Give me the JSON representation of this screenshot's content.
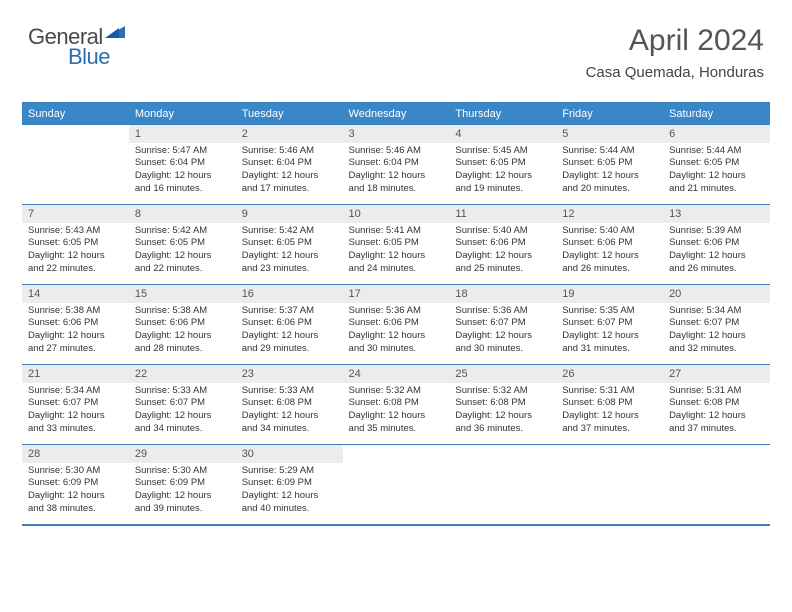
{
  "logo": {
    "general": "General",
    "blue": "Blue"
  },
  "title": "April 2024",
  "subtitle": "Casa Quemada, Honduras",
  "colors": {
    "header_bg": "#3a87c7",
    "header_border": "#3a7fbf",
    "daynum_bg": "#ececec",
    "text": "#333333"
  },
  "weekdays": [
    "Sunday",
    "Monday",
    "Tuesday",
    "Wednesday",
    "Thursday",
    "Friday",
    "Saturday"
  ],
  "weeks": [
    {
      "days": [
        {
          "num": "",
          "sunrise": "",
          "sunset": "",
          "daylight1": "",
          "daylight2": ""
        },
        {
          "num": "1",
          "sunrise": "Sunrise: 5:47 AM",
          "sunset": "Sunset: 6:04 PM",
          "daylight1": "Daylight: 12 hours",
          "daylight2": "and 16 minutes."
        },
        {
          "num": "2",
          "sunrise": "Sunrise: 5:46 AM",
          "sunset": "Sunset: 6:04 PM",
          "daylight1": "Daylight: 12 hours",
          "daylight2": "and 17 minutes."
        },
        {
          "num": "3",
          "sunrise": "Sunrise: 5:46 AM",
          "sunset": "Sunset: 6:04 PM",
          "daylight1": "Daylight: 12 hours",
          "daylight2": "and 18 minutes."
        },
        {
          "num": "4",
          "sunrise": "Sunrise: 5:45 AM",
          "sunset": "Sunset: 6:05 PM",
          "daylight1": "Daylight: 12 hours",
          "daylight2": "and 19 minutes."
        },
        {
          "num": "5",
          "sunrise": "Sunrise: 5:44 AM",
          "sunset": "Sunset: 6:05 PM",
          "daylight1": "Daylight: 12 hours",
          "daylight2": "and 20 minutes."
        },
        {
          "num": "6",
          "sunrise": "Sunrise: 5:44 AM",
          "sunset": "Sunset: 6:05 PM",
          "daylight1": "Daylight: 12 hours",
          "daylight2": "and 21 minutes."
        }
      ]
    },
    {
      "days": [
        {
          "num": "7",
          "sunrise": "Sunrise: 5:43 AM",
          "sunset": "Sunset: 6:05 PM",
          "daylight1": "Daylight: 12 hours",
          "daylight2": "and 22 minutes."
        },
        {
          "num": "8",
          "sunrise": "Sunrise: 5:42 AM",
          "sunset": "Sunset: 6:05 PM",
          "daylight1": "Daylight: 12 hours",
          "daylight2": "and 22 minutes."
        },
        {
          "num": "9",
          "sunrise": "Sunrise: 5:42 AM",
          "sunset": "Sunset: 6:05 PM",
          "daylight1": "Daylight: 12 hours",
          "daylight2": "and 23 minutes."
        },
        {
          "num": "10",
          "sunrise": "Sunrise: 5:41 AM",
          "sunset": "Sunset: 6:05 PM",
          "daylight1": "Daylight: 12 hours",
          "daylight2": "and 24 minutes."
        },
        {
          "num": "11",
          "sunrise": "Sunrise: 5:40 AM",
          "sunset": "Sunset: 6:06 PM",
          "daylight1": "Daylight: 12 hours",
          "daylight2": "and 25 minutes."
        },
        {
          "num": "12",
          "sunrise": "Sunrise: 5:40 AM",
          "sunset": "Sunset: 6:06 PM",
          "daylight1": "Daylight: 12 hours",
          "daylight2": "and 26 minutes."
        },
        {
          "num": "13",
          "sunrise": "Sunrise: 5:39 AM",
          "sunset": "Sunset: 6:06 PM",
          "daylight1": "Daylight: 12 hours",
          "daylight2": "and 26 minutes."
        }
      ]
    },
    {
      "days": [
        {
          "num": "14",
          "sunrise": "Sunrise: 5:38 AM",
          "sunset": "Sunset: 6:06 PM",
          "daylight1": "Daylight: 12 hours",
          "daylight2": "and 27 minutes."
        },
        {
          "num": "15",
          "sunrise": "Sunrise: 5:38 AM",
          "sunset": "Sunset: 6:06 PM",
          "daylight1": "Daylight: 12 hours",
          "daylight2": "and 28 minutes."
        },
        {
          "num": "16",
          "sunrise": "Sunrise: 5:37 AM",
          "sunset": "Sunset: 6:06 PM",
          "daylight1": "Daylight: 12 hours",
          "daylight2": "and 29 minutes."
        },
        {
          "num": "17",
          "sunrise": "Sunrise: 5:36 AM",
          "sunset": "Sunset: 6:06 PM",
          "daylight1": "Daylight: 12 hours",
          "daylight2": "and 30 minutes."
        },
        {
          "num": "18",
          "sunrise": "Sunrise: 5:36 AM",
          "sunset": "Sunset: 6:07 PM",
          "daylight1": "Daylight: 12 hours",
          "daylight2": "and 30 minutes."
        },
        {
          "num": "19",
          "sunrise": "Sunrise: 5:35 AM",
          "sunset": "Sunset: 6:07 PM",
          "daylight1": "Daylight: 12 hours",
          "daylight2": "and 31 minutes."
        },
        {
          "num": "20",
          "sunrise": "Sunrise: 5:34 AM",
          "sunset": "Sunset: 6:07 PM",
          "daylight1": "Daylight: 12 hours",
          "daylight2": "and 32 minutes."
        }
      ]
    },
    {
      "days": [
        {
          "num": "21",
          "sunrise": "Sunrise: 5:34 AM",
          "sunset": "Sunset: 6:07 PM",
          "daylight1": "Daylight: 12 hours",
          "daylight2": "and 33 minutes."
        },
        {
          "num": "22",
          "sunrise": "Sunrise: 5:33 AM",
          "sunset": "Sunset: 6:07 PM",
          "daylight1": "Daylight: 12 hours",
          "daylight2": "and 34 minutes."
        },
        {
          "num": "23",
          "sunrise": "Sunrise: 5:33 AM",
          "sunset": "Sunset: 6:08 PM",
          "daylight1": "Daylight: 12 hours",
          "daylight2": "and 34 minutes."
        },
        {
          "num": "24",
          "sunrise": "Sunrise: 5:32 AM",
          "sunset": "Sunset: 6:08 PM",
          "daylight1": "Daylight: 12 hours",
          "daylight2": "and 35 minutes."
        },
        {
          "num": "25",
          "sunrise": "Sunrise: 5:32 AM",
          "sunset": "Sunset: 6:08 PM",
          "daylight1": "Daylight: 12 hours",
          "daylight2": "and 36 minutes."
        },
        {
          "num": "26",
          "sunrise": "Sunrise: 5:31 AM",
          "sunset": "Sunset: 6:08 PM",
          "daylight1": "Daylight: 12 hours",
          "daylight2": "and 37 minutes."
        },
        {
          "num": "27",
          "sunrise": "Sunrise: 5:31 AM",
          "sunset": "Sunset: 6:08 PM",
          "daylight1": "Daylight: 12 hours",
          "daylight2": "and 37 minutes."
        }
      ]
    },
    {
      "days": [
        {
          "num": "28",
          "sunrise": "Sunrise: 5:30 AM",
          "sunset": "Sunset: 6:09 PM",
          "daylight1": "Daylight: 12 hours",
          "daylight2": "and 38 minutes."
        },
        {
          "num": "29",
          "sunrise": "Sunrise: 5:30 AM",
          "sunset": "Sunset: 6:09 PM",
          "daylight1": "Daylight: 12 hours",
          "daylight2": "and 39 minutes."
        },
        {
          "num": "30",
          "sunrise": "Sunrise: 5:29 AM",
          "sunset": "Sunset: 6:09 PM",
          "daylight1": "Daylight: 12 hours",
          "daylight2": "and 40 minutes."
        },
        {
          "num": "",
          "sunrise": "",
          "sunset": "",
          "daylight1": "",
          "daylight2": ""
        },
        {
          "num": "",
          "sunrise": "",
          "sunset": "",
          "daylight1": "",
          "daylight2": ""
        },
        {
          "num": "",
          "sunrise": "",
          "sunset": "",
          "daylight1": "",
          "daylight2": ""
        },
        {
          "num": "",
          "sunrise": "",
          "sunset": "",
          "daylight1": "",
          "daylight2": ""
        }
      ]
    }
  ]
}
